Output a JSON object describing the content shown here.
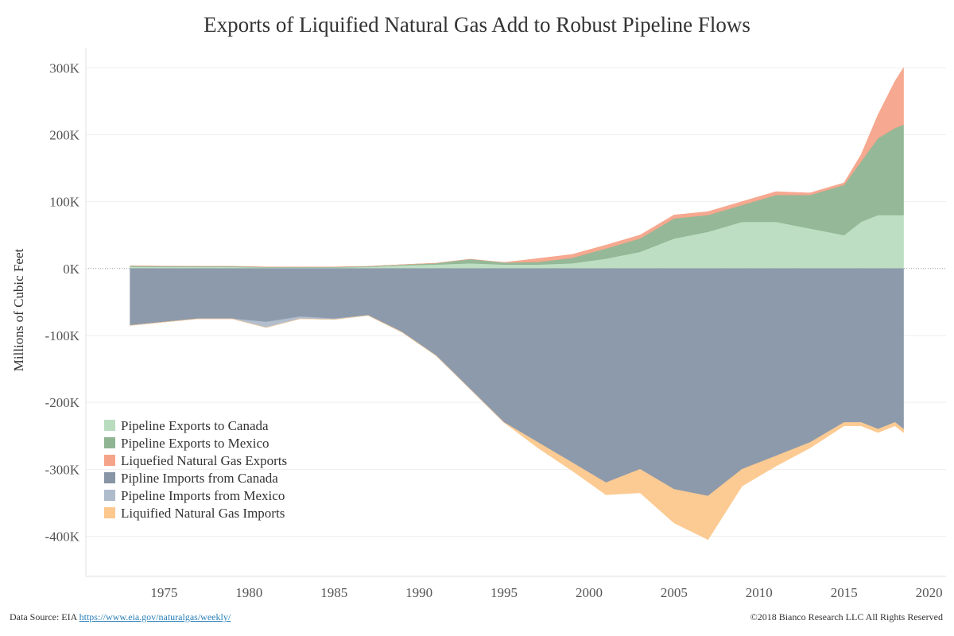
{
  "chart_data": {
    "type": "area",
    "title": "Exports of Liquified Natural Gas Add to Robust Pipeline Flows",
    "ylabel": "Millions of Cubic Feet",
    "xlabel": "",
    "xlim": [
      1970.4,
      2021.0
    ],
    "ylim": [
      -460000,
      330000
    ],
    "x_ticks": [
      1975,
      1980,
      1985,
      1990,
      1995,
      2000,
      2005,
      2010,
      2015,
      2020
    ],
    "x_tick_labels": [
      "1975",
      "1980",
      "1985",
      "1990",
      "1995",
      "2000",
      "2005",
      "2010",
      "2015",
      "2020"
    ],
    "y_ticks": [
      300000,
      200000,
      100000,
      0,
      -100000,
      -200000,
      -300000,
      -400000
    ],
    "y_tick_labels": [
      "300K",
      "200K",
      "100K",
      "0K",
      "-100K",
      "-200K",
      "-300K",
      "-400K"
    ],
    "grid": "horizontal",
    "legend_position": "bottom-left",
    "x": [
      1973,
      1975,
      1977,
      1979,
      1981,
      1983,
      1985,
      1987,
      1989,
      1991,
      1993,
      1995,
      1997,
      1999,
      2001,
      2003,
      2005,
      2007,
      2009,
      2011,
      2013,
      2015,
      2016,
      2017,
      2018,
      2018.5
    ],
    "series": [
      {
        "name": "Pipeline Exports to Canada",
        "color": "#b9dcbf",
        "stack": "positive",
        "values": [
          3000,
          2500,
          2500,
          2500,
          1500,
          1500,
          1500,
          2500,
          5000,
          6000,
          8000,
          6000,
          6000,
          8000,
          15000,
          25000,
          45000,
          55000,
          70000,
          70000,
          60000,
          50000,
          70000,
          80000,
          80000,
          80000
        ]
      },
      {
        "name": "Pipeline Exports to Mexico",
        "color": "#8fb592",
        "stack": "positive",
        "values": [
          1000,
          1000,
          800,
          800,
          800,
          800,
          800,
          800,
          800,
          2000,
          6000,
          3000,
          4000,
          8000,
          15000,
          20000,
          30000,
          25000,
          25000,
          40000,
          50000,
          75000,
          90000,
          115000,
          130000,
          135000
        ]
      },
      {
        "name": "Liquefied Natural Gas Exports",
        "color": "#f5a48a",
        "stack": "positive",
        "values": [
          0,
          0,
          0,
          0,
          0,
          0,
          0,
          0,
          0,
          0,
          0,
          0,
          5000,
          5000,
          5000,
          5000,
          5000,
          5000,
          5000,
          5000,
          3000,
          3000,
          10000,
          35000,
          70000,
          85000
        ]
      },
      {
        "name": "Pipline Imports from Canada",
        "color": "#8795a6",
        "stack": "negative",
        "values": [
          -85000,
          -80000,
          -75000,
          -75000,
          -80000,
          -72000,
          -75000,
          -70000,
          -95000,
          -130000,
          -180000,
          -230000,
          -260000,
          -290000,
          -320000,
          -300000,
          -330000,
          -340000,
          -300000,
          -280000,
          -260000,
          -230000,
          -230000,
          -240000,
          -230000,
          -240000
        ]
      },
      {
        "name": "Pipeline Imports from Mexico",
        "color": "#aebbcb",
        "stack": "negative",
        "values": [
          0,
          0,
          0,
          0,
          -8000,
          -3000,
          -1000,
          0,
          0,
          0,
          0,
          0,
          0,
          0,
          0,
          0,
          0,
          0,
          0,
          0,
          0,
          0,
          0,
          0,
          0,
          0
        ]
      },
      {
        "name": "Liquified Natural Gas Imports",
        "color": "#fcc88d",
        "stack": "negative",
        "values": [
          0,
          0,
          0,
          0,
          0,
          0,
          0,
          0,
          0,
          0,
          0,
          0,
          -8000,
          -12000,
          -18000,
          -35000,
          -50000,
          -65000,
          -25000,
          -15000,
          -8000,
          -5000,
          -5000,
          -5000,
          -5000,
          -5000
        ]
      }
    ]
  },
  "footer": {
    "source_prefix": "Data Source: EIA",
    "source_link": "https://www.eia.gov/naturalgas/weekly/",
    "copyright": "©2018 Bianco Research LLC  All Rights Reserved"
  }
}
